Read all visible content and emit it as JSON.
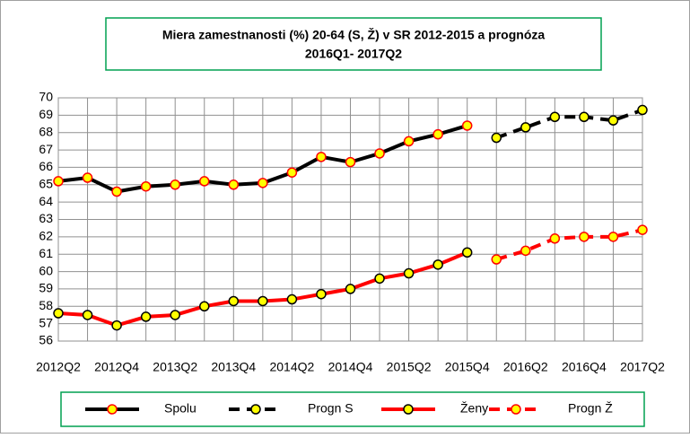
{
  "chart_data": {
    "type": "line",
    "title": [
      "Miera zamestnanosti (%) 20-64 (S, Ž) v SR 2012-2015 a prognóza",
      "2016Q1- 2017Q2"
    ],
    "categories": [
      "2012Q2",
      null,
      "2012Q4",
      null,
      "2013Q2",
      null,
      "2013Q4",
      null,
      "2014Q2",
      null,
      "2014Q4",
      null,
      "2015Q2",
      null,
      "2015Q4",
      null,
      "2016Q2",
      null,
      "2016Q4",
      null,
      "2017Q2"
    ],
    "series": [
      {
        "name": "Spolu",
        "color": "#000000",
        "marker_edge": "#ff0000",
        "dashed": false,
        "values": [
          65.2,
          65.4,
          64.6,
          64.9,
          65.0,
          65.2,
          65.0,
          65.1,
          65.7,
          66.6,
          66.3,
          66.8,
          67.5,
          67.9,
          68.4,
          null,
          null,
          null,
          null,
          null,
          null
        ]
      },
      {
        "name": "Progn S",
        "color": "#000000",
        "marker_edge": "#000000",
        "dashed": true,
        "values": [
          null,
          null,
          null,
          null,
          null,
          null,
          null,
          null,
          null,
          null,
          null,
          null,
          null,
          null,
          null,
          67.7,
          68.3,
          68.9,
          68.9,
          68.7,
          69.3
        ]
      },
      {
        "name": "Ženy",
        "color": "#ff0000",
        "marker_edge": "#000000",
        "dashed": false,
        "values": [
          57.6,
          57.5,
          56.9,
          57.4,
          57.5,
          58.0,
          58.3,
          58.3,
          58.4,
          58.7,
          59.0,
          59.6,
          59.9,
          60.4,
          61.1,
          null,
          null,
          null,
          null,
          null,
          null
        ]
      },
      {
        "name": "Progn Ž",
        "color": "#ff0000",
        "marker_edge": "#ff0000",
        "dashed": true,
        "values": [
          null,
          null,
          null,
          null,
          null,
          null,
          null,
          null,
          null,
          null,
          null,
          null,
          null,
          null,
          null,
          60.7,
          61.2,
          61.9,
          62.0,
          62.0,
          62.4
        ]
      }
    ],
    "marker_color": "#ffff00",
    "ylim": [
      56,
      70
    ],
    "yticks": [
      56,
      57,
      58,
      59,
      60,
      61,
      62,
      63,
      64,
      65,
      66,
      67,
      68,
      69,
      70
    ],
    "grid": true,
    "legend": "bottom"
  }
}
